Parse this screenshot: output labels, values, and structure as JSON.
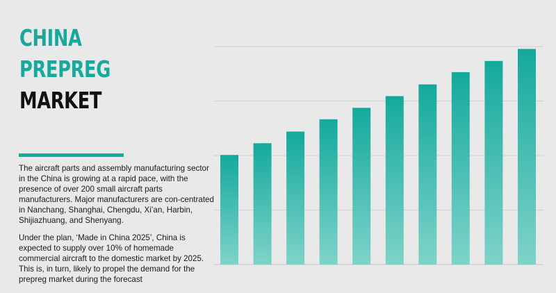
{
  "title": {
    "line1": "CHINA",
    "line2": "PREPREG",
    "line3": "MARKET"
  },
  "body": {
    "paragraph1": "The aircraft parts and assembly manufacturing sector in the China is growing at a rapid pace, with the presence of over 200 small aircraft parts manufacturers. Major manufacturers are con-centrated in Nanchang, Shanghai, Chengdu, Xi’an, Harbin, Shijiazhuang, and Shenyang.",
    "paragraph2": "Under the plan, ‘Made in China 2025’, China is expected to supply over 10% of homemade commercial aircraft to the domestic market by 2025. This is, in turn, likely to propel the demand for the prepreg market during the forecast"
  },
  "colors": {
    "accent": "#18a99d",
    "bar_top": "#14a99c",
    "bar_bottom": "#7ed3c9",
    "grid": "#cfcfcf",
    "background": "#e9e9e9"
  },
  "chart_data": {
    "type": "bar",
    "title": "",
    "xlabel": "",
    "ylabel": "",
    "categories": [
      "",
      "",
      "",
      "",
      "",
      "",
      "",
      "",
      "",
      ""
    ],
    "values": [
      40.2,
      44.5,
      48.8,
      53.3,
      57.5,
      61.8,
      66.1,
      70.6,
      74.7,
      79.1
    ],
    "ylim": [
      0,
      80
    ],
    "grid": true,
    "gridlines": [
      0,
      20,
      40,
      60,
      80
    ],
    "legend": "none"
  }
}
